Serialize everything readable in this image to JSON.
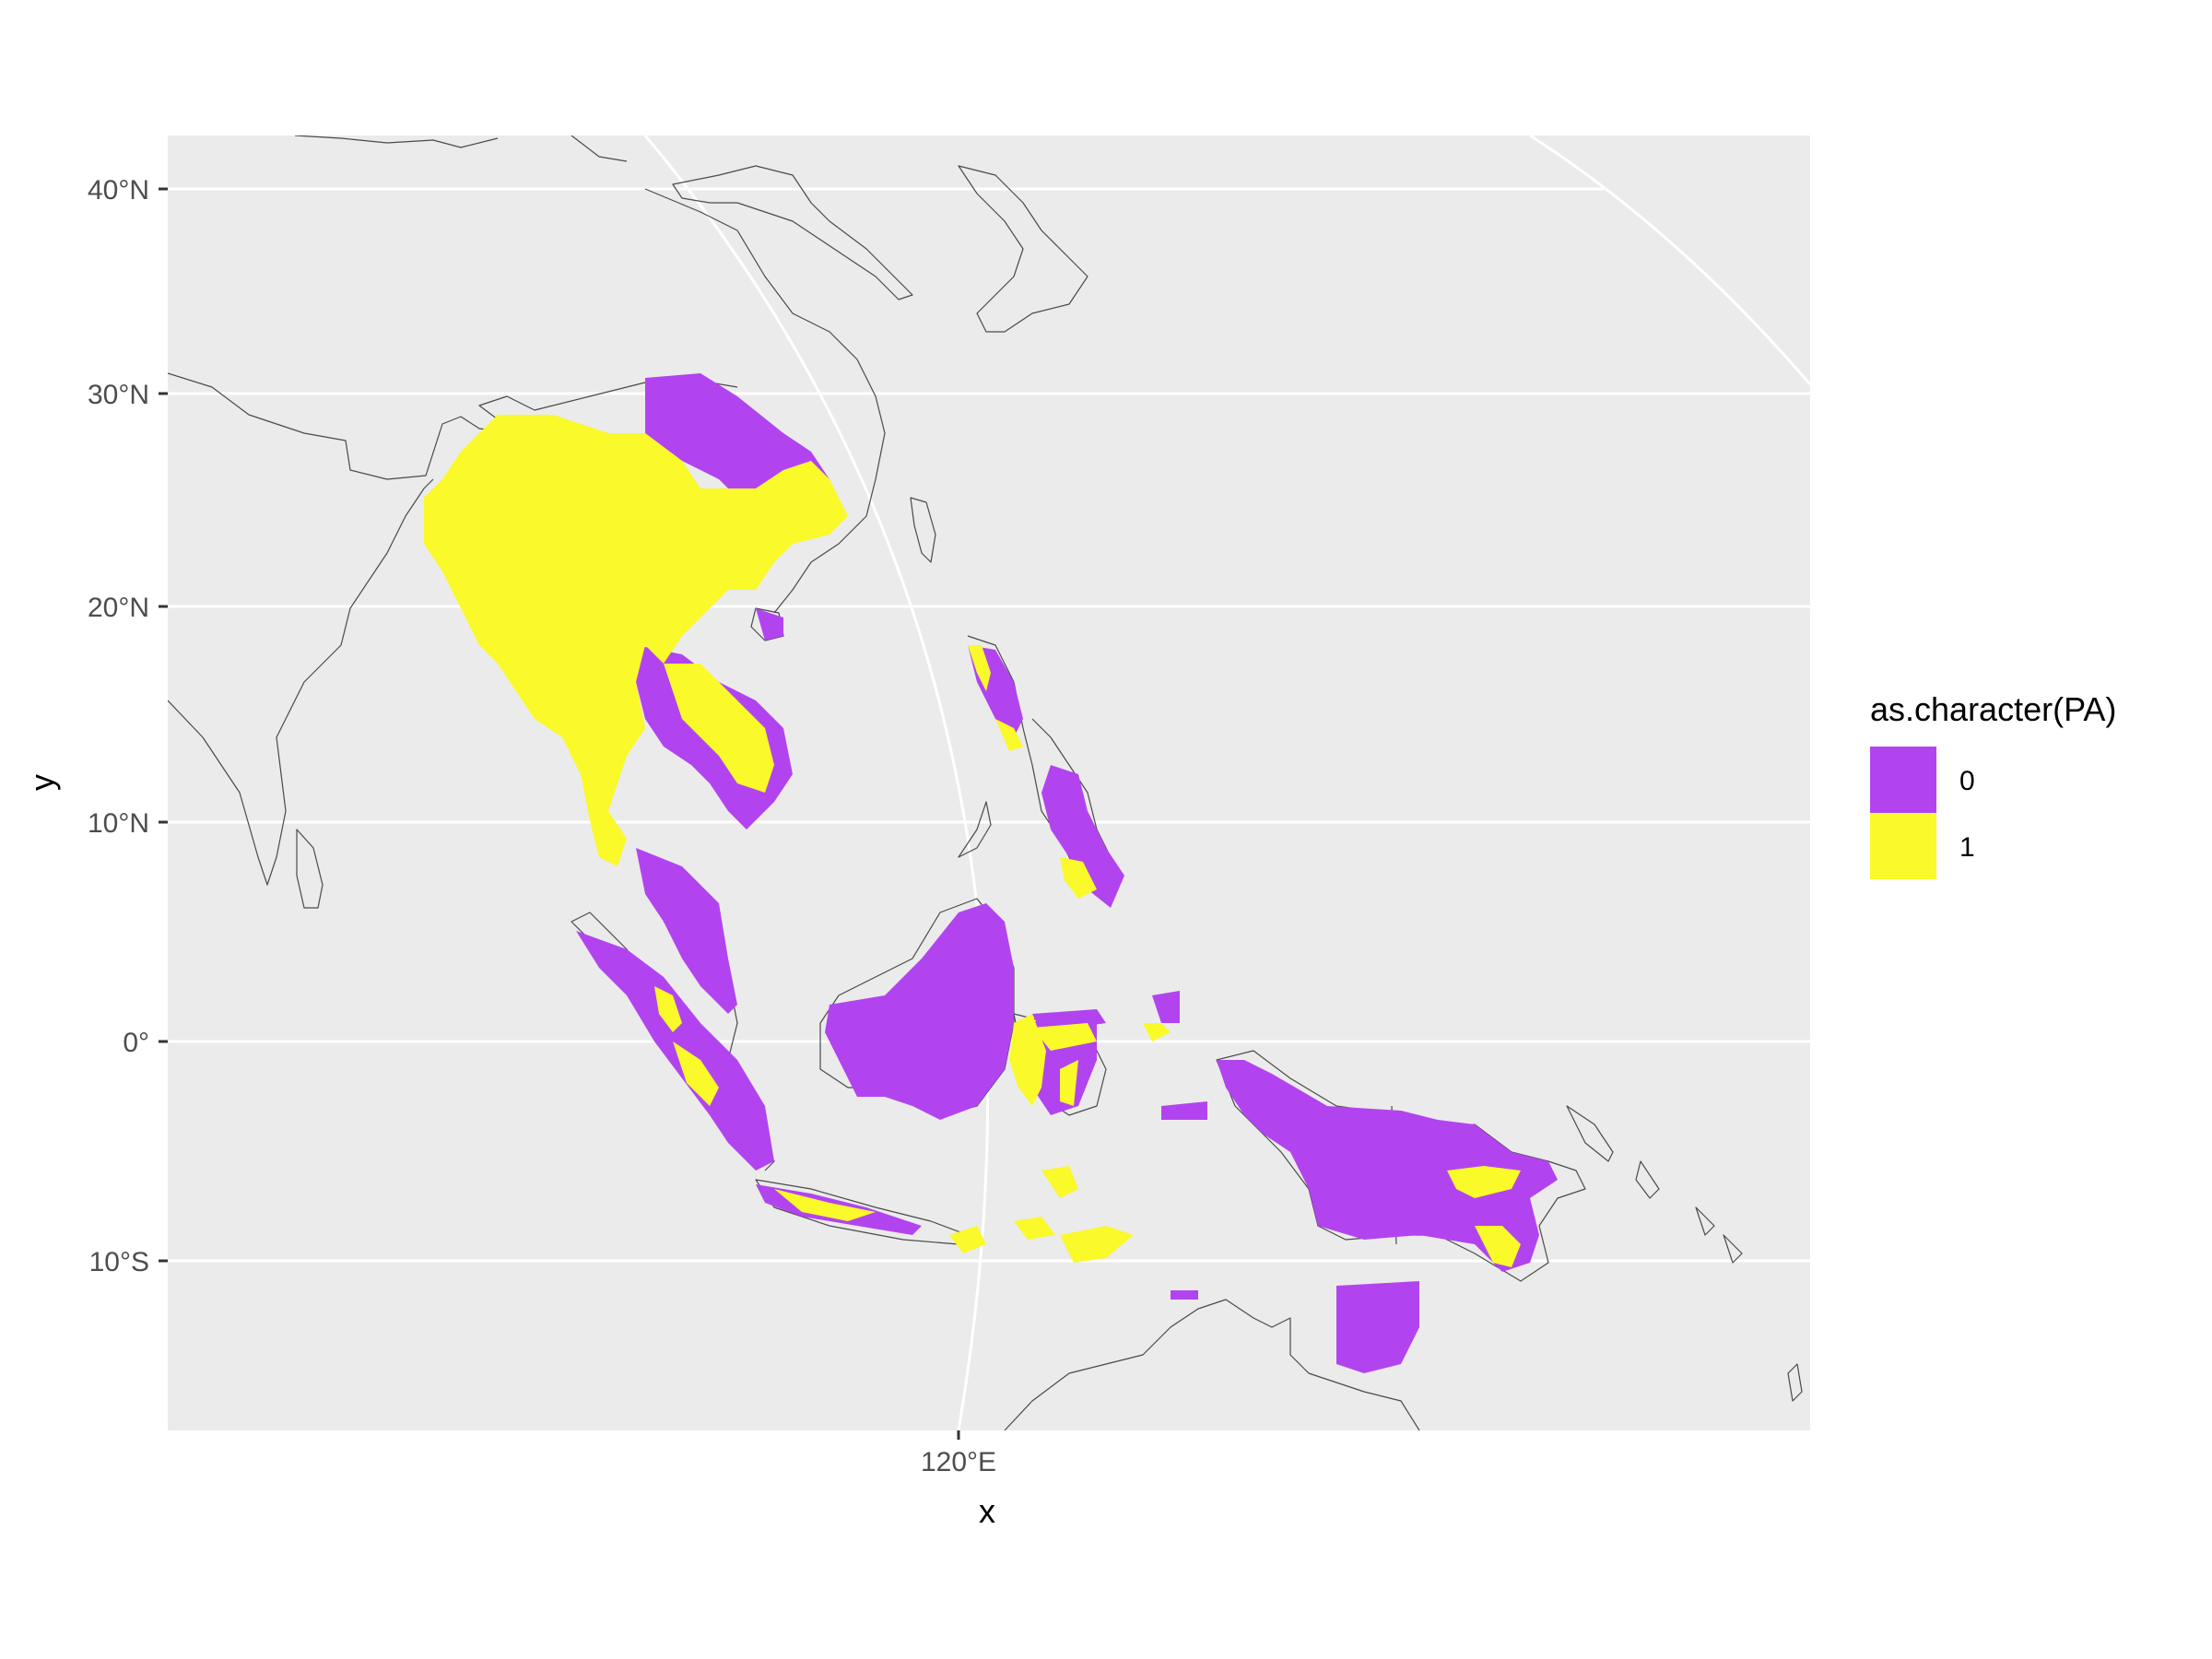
{
  "map": {
    "panel_background": "#ebebeb",
    "gridline_color": "#ffffff",
    "coastline_color": "#4a4a4a",
    "y_axis": {
      "title": "y",
      "ticks": [
        "40°N",
        "30°N",
        "20°N",
        "10°N",
        "0°",
        "10°S"
      ],
      "tick_values": [
        40,
        30,
        20,
        10,
        0,
        -10
      ]
    },
    "x_axis": {
      "title": "x",
      "ticks": [
        "120°E"
      ],
      "tick_values": [
        120
      ]
    },
    "legend": {
      "title": "as.character(PA)",
      "entries": [
        {
          "label": "0",
          "color": "#b244ef"
        },
        {
          "label": "1",
          "color": "#faf92a"
        }
      ]
    }
  }
}
